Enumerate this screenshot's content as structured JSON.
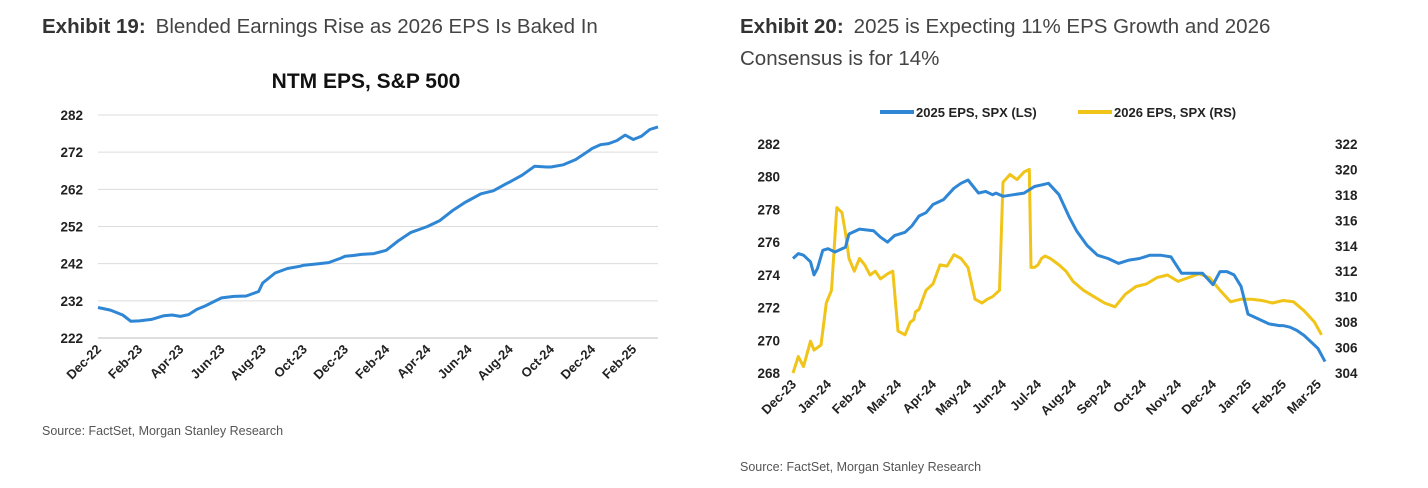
{
  "exhibit19": {
    "number": "Exhibit 19:",
    "title": "Blended Earnings Rise as 2026 EPS Is Baked In",
    "source": "Source: FactSet, Morgan Stanley Research"
  },
  "exhibit20": {
    "number": "Exhibit 20:",
    "title_line1": "2025 is Expecting 11% EPS Growth and 2026",
    "title_line2": "Consensus is for 14%",
    "source": "Source: FactSet, Morgan Stanley Research"
  },
  "chart_data": [
    {
      "type": "line",
      "title": "NTM EPS, S&P 500",
      "xlabel": "",
      "ylabel": "",
      "x_ticks": [
        "Dec-22",
        "Feb-23",
        "Apr-23",
        "Jun-23",
        "Aug-23",
        "Oct-23",
        "Dec-23",
        "Feb-24",
        "Apr-24",
        "Jun-24",
        "Aug-24",
        "Oct-24",
        "Dec-24",
        "Feb-25"
      ],
      "y_ticks": [
        222,
        232,
        242,
        252,
        262,
        272,
        282
      ],
      "ylim": [
        222,
        282
      ],
      "grid": "horizontal",
      "color": "#2e86d4",
      "series": [
        {
          "x_index": [
            0,
            0.3,
            0.6,
            0.8,
            1.0,
            1.3,
            1.6,
            1.8,
            2.0,
            2.2,
            2.4,
            2.6,
            2.8,
            3.0,
            3.3,
            3.6,
            3.9,
            4.0,
            4.3,
            4.6,
            4.9,
            5.0,
            5.3,
            5.6,
            5.9,
            6.0,
            6.2,
            6.4,
            6.7,
            7.0,
            7.3,
            7.6,
            7.9,
            8.0,
            8.3,
            8.6,
            8.9,
            9.0,
            9.3,
            9.6,
            9.9,
            10.0,
            10.3,
            10.6,
            10.9,
            11.0,
            11.3,
            11.6,
            11.9,
            12.0,
            12.2,
            12.4,
            12.6,
            12.8,
            13.0,
            13.2,
            13.4,
            13.6
          ],
          "values": [
            230.2,
            229.5,
            228.2,
            226.5,
            226.6,
            227.0,
            228.0,
            228.2,
            227.8,
            228.3,
            229.7,
            230.6,
            231.7,
            232.8,
            233.2,
            233.3,
            234.5,
            236.8,
            239.5,
            240.7,
            241.3,
            241.6,
            241.9,
            242.3,
            243.5,
            244.0,
            244.2,
            244.5,
            244.7,
            245.6,
            248.2,
            250.4,
            251.6,
            252.0,
            253.6,
            256.2,
            258.4,
            259.0,
            260.8,
            261.6,
            263.4,
            264.0,
            265.8,
            268.2,
            268.0,
            268.0,
            268.6,
            270.0,
            272.2,
            273.0,
            274.0,
            274.3,
            275.1,
            276.6,
            275.4,
            276.3,
            278.1,
            278.8
          ]
        }
      ]
    },
    {
      "type": "line",
      "title": "",
      "xlabel": "",
      "ylabel": "",
      "x_ticks": [
        "Dec-23",
        "Jan-24",
        "Feb-24",
        "Mar-24",
        "Apr-24",
        "May-24",
        "Jun-24",
        "Jul-24",
        "Aug-24",
        "Sep-24",
        "Oct-24",
        "Nov-24",
        "Dec-24",
        "Jan-25",
        "Feb-25",
        "Mar-25"
      ],
      "y_left_ticks": [
        268,
        270,
        272,
        274,
        276,
        278,
        280,
        282
      ],
      "y_left_lim": [
        268,
        282
      ],
      "y_right_ticks": [
        304,
        306,
        308,
        310,
        312,
        314,
        316,
        318,
        320,
        322
      ],
      "y_right_lim": [
        304,
        322
      ],
      "grid": "none",
      "legend_position": "top",
      "series": [
        {
          "name": "2025 EPS, SPX (LS)",
          "axis": "left",
          "color": "#2e86d4",
          "x_index": [
            0,
            0.15,
            0.3,
            0.5,
            0.6,
            0.7,
            0.85,
            1.0,
            1.2,
            1.5,
            1.6,
            1.9,
            2.3,
            2.5,
            2.7,
            2.9,
            3.2,
            3.4,
            3.6,
            3.8,
            4.0,
            4.3,
            4.6,
            4.8,
            5.0,
            5.3,
            5.5,
            5.7,
            5.8,
            6.0,
            6.3,
            6.6,
            6.9,
            7.1,
            7.3,
            7.6,
            7.9,
            8.1,
            8.4,
            8.7,
            9.0,
            9.3,
            9.6,
            9.9,
            10.2,
            10.5,
            10.8,
            11.1,
            11.4,
            11.7,
            12.0,
            12.2,
            12.4,
            12.6,
            12.8,
            13.0,
            13.1,
            13.3,
            13.6,
            13.9,
            14.0,
            14.2,
            14.4,
            14.6,
            14.8,
            15.0,
            15.2
          ],
          "values": [
            275.0,
            275.3,
            275.2,
            274.8,
            274.0,
            274.4,
            275.5,
            275.6,
            275.4,
            275.7,
            276.5,
            276.8,
            276.7,
            276.3,
            276.0,
            276.4,
            276.6,
            277.0,
            277.6,
            277.8,
            278.3,
            278.6,
            279.3,
            279.6,
            279.8,
            279.0,
            279.1,
            278.9,
            279.0,
            278.8,
            278.9,
            279.0,
            279.4,
            279.5,
            279.6,
            278.9,
            277.5,
            276.7,
            275.8,
            275.2,
            275.0,
            274.7,
            274.9,
            275.0,
            275.2,
            275.2,
            275.1,
            274.1,
            274.1,
            274.1,
            273.4,
            274.2,
            274.2,
            274.0,
            273.3,
            271.6,
            271.5,
            271.3,
            271.0,
            270.9,
            270.9,
            270.8,
            270.6,
            270.3,
            269.9,
            269.5,
            268.7
          ]
        },
        {
          "name": "2026 EPS, SPX (RS)",
          "axis": "right",
          "color": "#f0c419",
          "x_index": [
            0,
            0.15,
            0.3,
            0.5,
            0.6,
            0.8,
            0.95,
            1.1,
            1.25,
            1.4,
            1.5,
            1.6,
            1.75,
            1.9,
            2.05,
            2.2,
            2.35,
            2.5,
            2.7,
            2.85,
            3.0,
            3.2,
            3.35,
            3.45,
            3.5,
            3.6,
            3.8,
            4.0,
            4.2,
            4.4,
            4.6,
            4.8,
            5.0,
            5.2,
            5.4,
            5.55,
            5.7,
            5.9,
            6.0,
            6.2,
            6.4,
            6.6,
            6.75,
            6.8,
            6.9,
            7.0,
            7.1,
            7.2,
            7.35,
            7.45,
            7.6,
            7.8,
            8.0,
            8.3,
            8.6,
            8.9,
            9.2,
            9.5,
            9.8,
            10.1,
            10.4,
            10.7,
            11.0,
            11.3,
            11.6,
            11.9,
            12.2,
            12.5,
            12.8,
            13.1,
            13.4,
            13.7,
            14.0,
            14.3,
            14.6,
            14.9,
            15.1
          ],
          "values": [
            304.0,
            305.3,
            304.5,
            306.5,
            305.8,
            306.2,
            309.5,
            310.5,
            317.0,
            316.6,
            315.0,
            313.0,
            312.0,
            313.0,
            312.5,
            311.7,
            312.0,
            311.4,
            311.8,
            312.0,
            307.3,
            307.0,
            308.0,
            308.2,
            308.8,
            309.0,
            310.5,
            311.0,
            312.5,
            312.4,
            313.3,
            313.0,
            312.3,
            309.8,
            309.5,
            309.8,
            310.0,
            310.5,
            319.0,
            319.6,
            319.2,
            319.8,
            320.0,
            312.3,
            312.3,
            312.5,
            313.0,
            313.2,
            313.0,
            312.8,
            312.5,
            312.0,
            311.2,
            310.5,
            310.0,
            309.5,
            309.2,
            310.2,
            310.8,
            311.0,
            311.5,
            311.7,
            311.2,
            311.5,
            311.8,
            311.5,
            310.5,
            309.6,
            309.8,
            309.8,
            309.7,
            309.5,
            309.7,
            309.6,
            308.9,
            308.0,
            307.0
          ]
        }
      ]
    }
  ]
}
